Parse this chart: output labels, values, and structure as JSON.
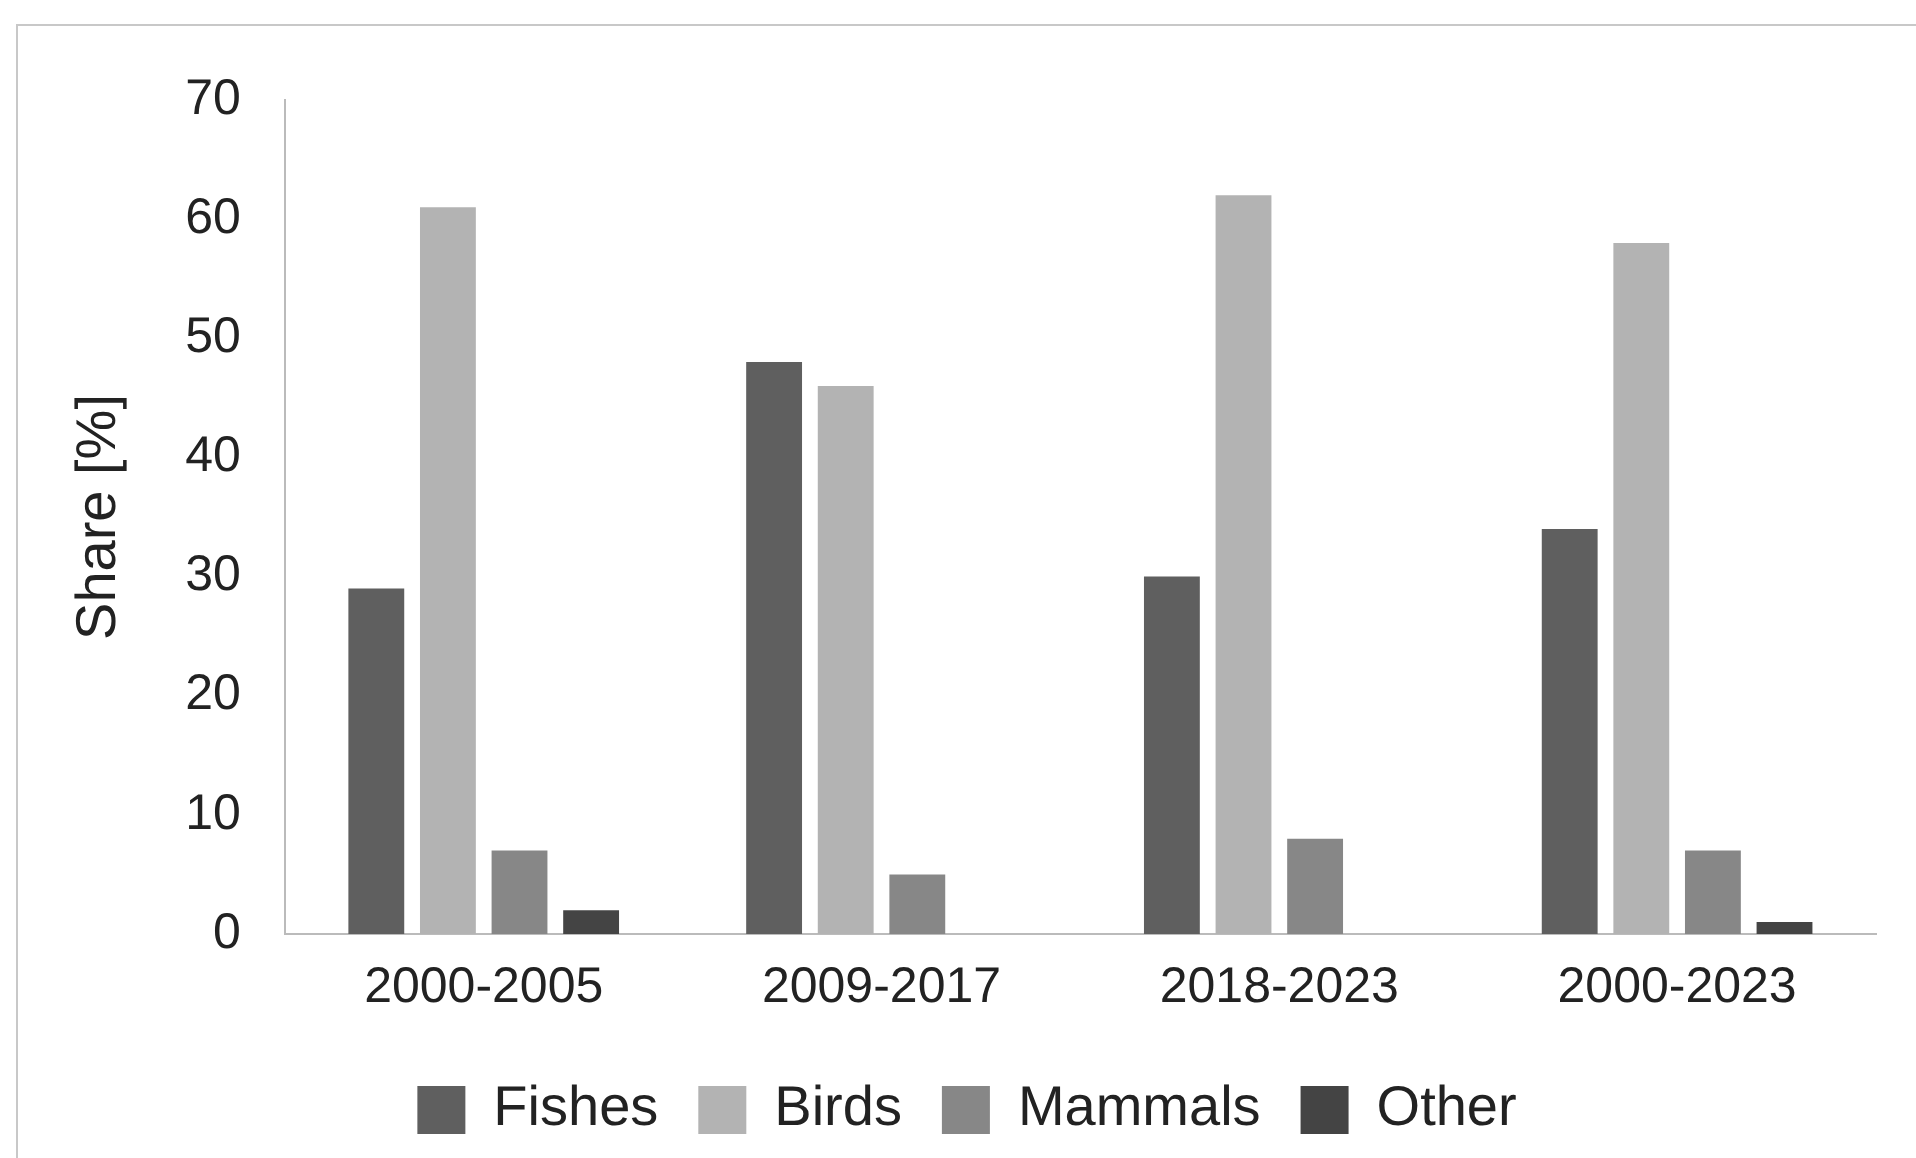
{
  "chart_data": {
    "type": "bar",
    "ylabel": "Share [%]",
    "categories": [
      "2000-2005",
      "2009-2017",
      "2018-2023",
      "2000-2023"
    ],
    "series": [
      {
        "name": "Fishes",
        "color": "#5f5f5f",
        "values": [
          29,
          48,
          30,
          34
        ]
      },
      {
        "name": "Birds",
        "color": "#b3b3b3",
        "values": [
          61,
          46,
          62,
          58
        ]
      },
      {
        "name": "Mammals",
        "color": "#878787",
        "values": [
          7,
          5,
          8,
          7
        ]
      },
      {
        "name": "Other",
        "color": "#444444",
        "values": [
          2,
          0,
          0,
          1
        ]
      }
    ],
    "ylim": [
      0,
      70
    ],
    "yticks": [
      0,
      10,
      20,
      30,
      40,
      50,
      60,
      70
    ],
    "grid": false,
    "legend": "bottom"
  }
}
